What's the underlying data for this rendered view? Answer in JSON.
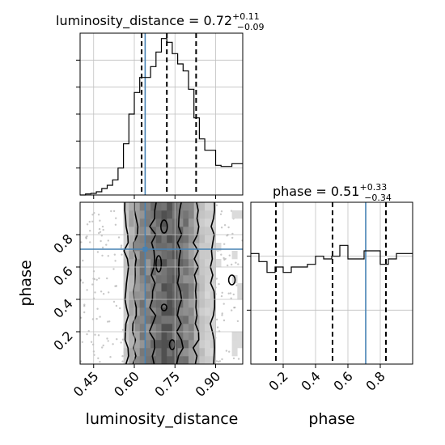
{
  "chart_data": {
    "type": "corner",
    "parameters": [
      "luminosity_distance",
      "phase"
    ],
    "truths": {
      "luminosity_distance": 0.64,
      "phase": 0.71
    },
    "colors": {
      "truth": "#4682b4",
      "grid": "#c0c0c0",
      "hist": "#000000",
      "points": "#9a9a9a"
    },
    "panels": {
      "luminosity_distance_hist": {
        "title": {
          "prefix": "luminosity_distance = 0.72",
          "plus": "+0.11",
          "minus": "−0.09"
        },
        "quantile_lines": [
          0.627,
          0.72,
          0.828
        ],
        "xlim": [
          0.4,
          1.0
        ],
        "bin_edges": [
          0.4,
          0.42,
          0.44,
          0.46,
          0.48,
          0.5,
          0.52,
          0.54,
          0.56,
          0.58,
          0.6,
          0.62,
          0.64,
          0.66,
          0.68,
          0.7,
          0.72,
          0.74,
          0.76,
          0.78,
          0.8,
          0.82,
          0.84,
          0.86,
          0.88,
          0.9,
          0.92,
          0.94,
          0.96,
          0.98,
          1.0
        ],
        "counts": [
          0,
          2,
          3,
          6,
          12,
          18,
          28,
          50,
          95,
          150,
          190,
          218,
          218,
          238,
          265,
          290,
          283,
          262,
          243,
          230,
          196,
          143,
          104,
          83,
          83,
          55,
          53,
          53,
          58,
          58
        ]
      },
      "phase_hist": {
        "title": {
          "prefix": "phase = 0.51",
          "plus": "+0.33",
          "minus": "−0.34"
        },
        "quantile_lines": [
          0.155,
          0.505,
          0.835
        ],
        "xlim": [
          0.0,
          1.0
        ],
        "bin_edges": [
          0.0,
          0.05,
          0.1,
          0.15,
          0.2,
          0.25,
          0.3,
          0.35,
          0.4,
          0.45,
          0.5,
          0.55,
          0.6,
          0.65,
          0.7,
          0.75,
          0.8,
          0.85,
          0.9,
          0.95,
          1.0
        ],
        "counts": [
          205,
          190,
          170,
          180,
          170,
          180,
          180,
          185,
          200,
          195,
          200,
          220,
          195,
          195,
          210,
          210,
          185,
          195,
          205,
          205
        ]
      },
      "joint": {
        "xlim": [
          0.4,
          1.0
        ],
        "ylim": [
          0.0,
          1.0
        ],
        "contour_levels": 3
      }
    },
    "axes": {
      "joint_x": {
        "label": "luminosity_distance",
        "ticks": [
          0.45,
          0.6,
          0.75,
          0.9
        ],
        "tick_labels": [
          "0.45",
          "0.60",
          "0.75",
          "0.90"
        ]
      },
      "joint_y": {
        "label": "phase",
        "ticks": [
          0.2,
          0.4,
          0.6,
          0.8
        ],
        "tick_labels": [
          "0.2",
          "0.4",
          "0.6",
          "0.8"
        ]
      },
      "phase_x": {
        "label": "phase",
        "ticks": [
          0.2,
          0.4,
          0.6,
          0.8
        ],
        "tick_labels": [
          "0.2",
          "0.4",
          "0.6",
          "0.8"
        ]
      }
    },
    "grid": true
  }
}
